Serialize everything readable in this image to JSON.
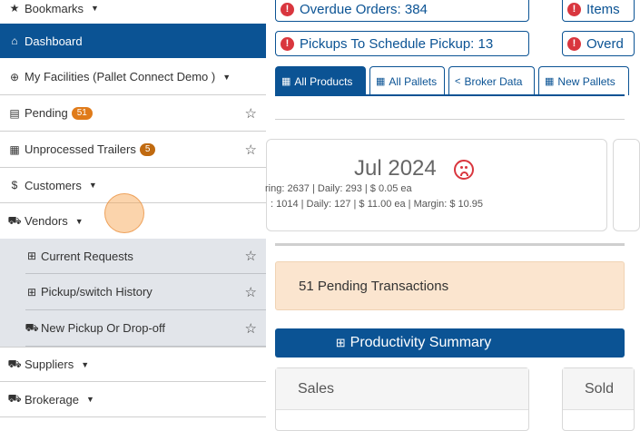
{
  "sidebar": {
    "bookmarks": "Bookmarks",
    "dashboard": "Dashboard",
    "facilities": "My Facilities (Pallet Connect Demo )",
    "pending": {
      "label": "Pending",
      "badge": "51"
    },
    "trailers": {
      "label": "Unprocessed Trailers",
      "badge": "5"
    },
    "customers": "Customers",
    "vendors": "Vendors",
    "vendor_items": [
      {
        "label": "Current Requests"
      },
      {
        "label": "Pickup/switch History"
      },
      {
        "label": "New Pickup Or Drop-off"
      }
    ],
    "suppliers": "Suppliers",
    "brokerage": "Brokerage"
  },
  "alerts": {
    "overdue_orders": "Overdue Orders: 384",
    "items": "Items",
    "pickups": "Pickups To Schedule Pickup: 13",
    "overdue2": "Overd"
  },
  "tabs": [
    {
      "label": "All Products"
    },
    {
      "label": "All Pallets"
    },
    {
      "label": "Broker Data"
    },
    {
      "label": "New Pallets"
    }
  ],
  "card": {
    "month": "Jul 2024",
    "line1": "ring: 2637 | Daily: 293 | $ 0.05 ea",
    ": 1014 | Daily: 127 | $ 11.00 ea | Margin: $ 10.95": null,
    "line2": ": 1014 | Daily: 127 | $ 11.00 ea | Margin: $ 10.95"
  },
  "pending_transactions": "51 Pending Transactions",
  "productivity_summary": "Productivity Summary",
  "panels": {
    "sales": "Sales",
    "sold": "Sold"
  },
  "colors": {
    "primary": "#0b5394",
    "danger": "#d9363e",
    "pending_bg": "#fbe5cf",
    "badge": "#e07b1a"
  }
}
